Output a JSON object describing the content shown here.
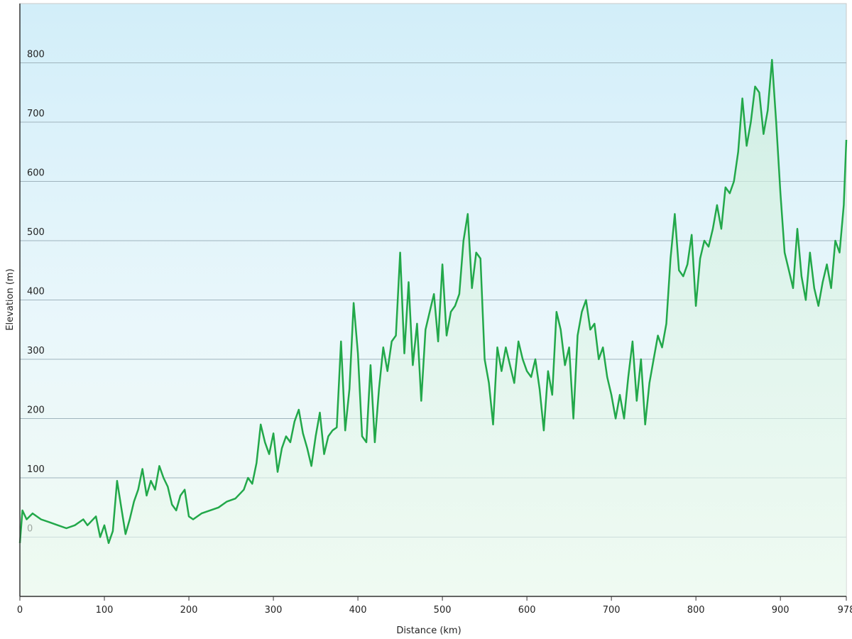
{
  "chart_data": {
    "type": "line",
    "x_label": "Distance  (km)",
    "y_label": "Elevation (m)",
    "xlim": [
      0,
      978
    ],
    "ylim": [
      -100,
      900
    ],
    "xticks": [
      0,
      100,
      200,
      300,
      400,
      500,
      600,
      700,
      800,
      900,
      978
    ],
    "yticks": [
      0,
      100,
      200,
      300,
      400,
      500,
      600,
      700,
      800
    ],
    "grid": true,
    "series": [
      {
        "color": "#22a84a",
        "x": [
          0,
          3,
          8,
          15,
          25,
          35,
          45,
          55,
          65,
          75,
          80,
          90,
          95,
          100,
          105,
          110,
          115,
          120,
          125,
          130,
          135,
          140,
          145,
          150,
          155,
          160,
          165,
          170,
          175,
          180,
          185,
          190,
          195,
          200,
          205,
          215,
          225,
          235,
          245,
          255,
          265,
          270,
          275,
          280,
          285,
          290,
          295,
          300,
          305,
          310,
          315,
          320,
          325,
          330,
          335,
          340,
          345,
          350,
          355,
          360,
          365,
          370,
          375,
          380,
          385,
          390,
          395,
          400,
          405,
          410,
          415,
          420,
          425,
          430,
          435,
          440,
          445,
          450,
          455,
          460,
          465,
          470,
          475,
          480,
          485,
          490,
          495,
          500,
          505,
          510,
          515,
          520,
          525,
          530,
          535,
          540,
          545,
          550,
          555,
          560,
          565,
          570,
          575,
          580,
          585,
          590,
          595,
          600,
          605,
          610,
          615,
          620,
          625,
          630,
          635,
          640,
          645,
          650,
          655,
          660,
          665,
          670,
          675,
          680,
          685,
          690,
          695,
          700,
          705,
          710,
          715,
          720,
          725,
          730,
          735,
          740,
          745,
          750,
          755,
          760,
          765,
          770,
          775,
          780,
          785,
          790,
          795,
          800,
          805,
          810,
          815,
          820,
          825,
          830,
          835,
          840,
          845,
          850,
          855,
          860,
          865,
          870,
          875,
          880,
          885,
          890,
          895,
          900,
          905,
          910,
          915,
          920,
          925,
          930,
          935,
          940,
          945,
          950,
          955,
          960,
          965,
          970,
          975,
          978
        ],
        "values": [
          -10,
          45,
          30,
          40,
          30,
          25,
          20,
          15,
          20,
          30,
          20,
          35,
          0,
          20,
          -10,
          10,
          95,
          50,
          5,
          30,
          60,
          80,
          115,
          70,
          95,
          80,
          120,
          100,
          85,
          55,
          45,
          70,
          80,
          35,
          30,
          40,
          45,
          50,
          60,
          65,
          80,
          100,
          90,
          125,
          190,
          160,
          140,
          175,
          110,
          150,
          170,
          160,
          195,
          215,
          175,
          150,
          120,
          170,
          210,
          140,
          170,
          180,
          185,
          330,
          180,
          250,
          395,
          310,
          170,
          160,
          290,
          160,
          250,
          320,
          280,
          330,
          340,
          480,
          310,
          430,
          290,
          360,
          230,
          350,
          380,
          410,
          330,
          460,
          340,
          380,
          390,
          410,
          500,
          545,
          420,
          480,
          470,
          300,
          260,
          190,
          320,
          280,
          320,
          290,
          260,
          330,
          300,
          280,
          270,
          300,
          250,
          180,
          280,
          240,
          380,
          350,
          290,
          320,
          200,
          340,
          380,
          400,
          350,
          360,
          300,
          320,
          270,
          240,
          200,
          240,
          200,
          270,
          330,
          230,
          300,
          190,
          260,
          300,
          340,
          320,
          360,
          470,
          545,
          450,
          440,
          460,
          510,
          390,
          470,
          500,
          490,
          520,
          560,
          520,
          590,
          580,
          600,
          650,
          740,
          660,
          700,
          760,
          750,
          680,
          720,
          805,
          700,
          580,
          480,
          450,
          420,
          520,
          440,
          400,
          480,
          420,
          390,
          430,
          460,
          420,
          500,
          480,
          560,
          670
        ]
      }
    ]
  }
}
